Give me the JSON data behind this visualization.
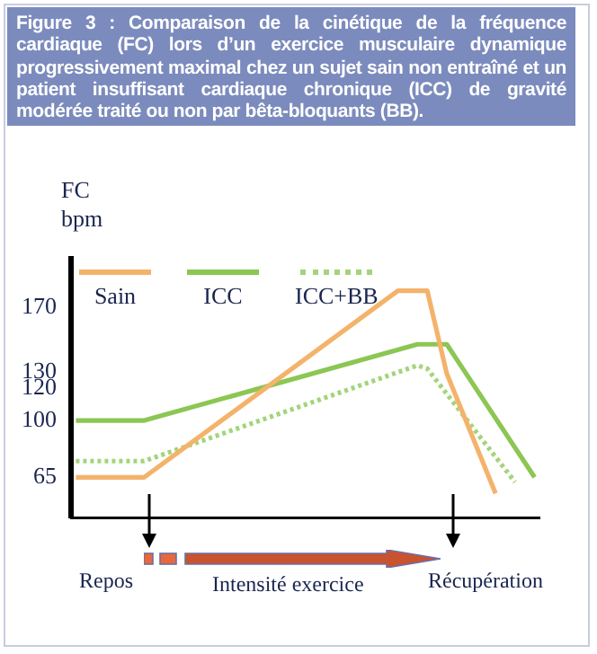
{
  "chart_data": {
    "type": "line",
    "title": "Figure 3 : Comparaison de  la cinétique de la fréquence cardiaque (FC) lors d’un exercice musculaire dynamique progressivement maximal chez un sujet sain non entraîné et un  patient insuffisant cardiaque chronique (ICC) de gravité modérée traité ou non par bêta-bloquants (BB).",
    "ylabel": "FC bpm",
    "annotations": [
      "Repos",
      "Intensité exercice",
      "Récupération"
    ],
    "categories": [
      null,
      null,
      null,
      null,
      null,
      null,
      null,
      null,
      null,
      null,
      null,
      null,
      null,
      null,
      null,
      null,
      null,
      null,
      null,
      null,
      null,
      null,
      null,
      null,
      null,
      null,
      null,
      null,
      null,
      null,
      null,
      null,
      null,
      null,
      null,
      null,
      null,
      null,
      null,
      null,
      null,
      null,
      null,
      null,
      null,
      null,
      null,
      null
    ],
    "ylim": [
      40,
      200
    ],
    "yticks": [
      65,
      100,
      120,
      130,
      170
    ],
    "tick_labels": "y",
    "grid": false,
    "legend": "top left",
    "marker": "none",
    "series": [
      {
        "name": "Sain",
        "color": "#f4b36b",
        "line_style": "solid",
        "values": [
          65,
          null,
          null,
          null,
          null,
          null,
          null,
          65,
          null,
          null,
          null,
          null,
          null,
          null,
          null,
          null,
          null,
          null,
          null,
          null,
          null,
          null,
          null,
          null,
          null,
          null,
          null,
          null,
          null,
          null,
          null,
          null,
          null,
          180,
          null,
          null,
          180,
          null,
          129,
          null,
          null,
          null,
          null,
          55,
          null,
          null,
          null,
          null
        ]
      },
      {
        "name": "ICC",
        "color": "#8cc653",
        "line_style": "solid",
        "values": [
          100,
          null,
          null,
          null,
          null,
          null,
          null,
          100,
          null,
          null,
          null,
          null,
          null,
          null,
          null,
          null,
          null,
          null,
          null,
          null,
          null,
          null,
          null,
          null,
          null,
          null,
          null,
          null,
          null,
          null,
          null,
          null,
          null,
          null,
          null,
          147,
          null,
          null,
          147,
          null,
          null,
          null,
          null,
          null,
          null,
          null,
          null,
          65
        ]
      },
      {
        "name": "ICC+BB",
        "color": "#a3d47a",
        "line_style": "dotted",
        "values": [
          75,
          null,
          null,
          null,
          null,
          null,
          null,
          75,
          null,
          null,
          null,
          null,
          null,
          null,
          null,
          null,
          null,
          null,
          null,
          null,
          null,
          null,
          null,
          null,
          null,
          null,
          null,
          null,
          null,
          null,
          null,
          null,
          null,
          null,
          null,
          134,
          132,
          null,
          null,
          null,
          null,
          null,
          null,
          null,
          null,
          62,
          null,
          null
        ]
      }
    ]
  }
}
